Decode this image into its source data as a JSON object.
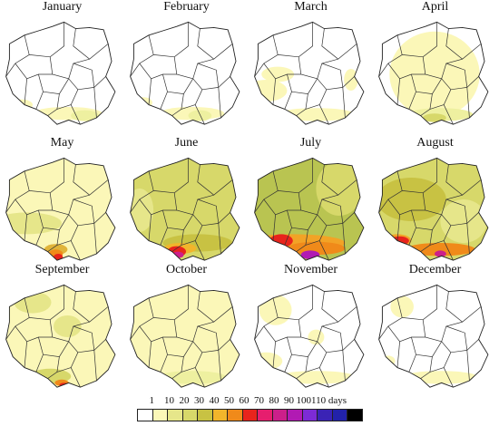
{
  "months": [
    {
      "name": "January",
      "base": "#ffffff",
      "mainCover": 0.0,
      "spots": [
        [
          "#fbf7b8",
          0.15,
          0.78,
          0.1,
          0.05
        ],
        [
          "#fbf7b8",
          0.55,
          0.86,
          0.3,
          0.06
        ],
        [
          "#eef0a0",
          0.7,
          0.88,
          0.12,
          0.05
        ]
      ]
    },
    {
      "name": "February",
      "base": "#ffffff",
      "mainCover": 0.0,
      "spots": [
        [
          "#fbf7b8",
          0.13,
          0.76,
          0.08,
          0.05
        ],
        [
          "#fbf7b8",
          0.55,
          0.86,
          0.28,
          0.06
        ],
        [
          "#eef0a0",
          0.62,
          0.88,
          0.1,
          0.05
        ]
      ]
    },
    {
      "name": "March",
      "base": "#ffffff",
      "mainCover": 0.0,
      "spots": [
        [
          "#fbf7b8",
          0.22,
          0.5,
          0.14,
          0.07
        ],
        [
          "#fbf7b8",
          0.12,
          0.65,
          0.18,
          0.1
        ],
        [
          "#fbf7b8",
          0.55,
          0.87,
          0.34,
          0.06
        ],
        [
          "#fbf7b8",
          0.85,
          0.55,
          0.06,
          0.1
        ]
      ]
    },
    {
      "name": "April",
      "base": "#ffffff",
      "mainCover": 0.62,
      "fill": "#fbf7b8",
      "spots": [
        [
          "#eef0a0",
          0.55,
          0.87,
          0.28,
          0.06
        ],
        [
          "#d7d86a",
          0.5,
          0.9,
          0.1,
          0.04
        ]
      ]
    },
    {
      "name": "May",
      "base": "#fbf7b8",
      "mainCover": 1.0,
      "spots": [
        [
          "#e6e68a",
          0.2,
          0.62,
          0.3,
          0.1
        ],
        [
          "#e0b43a",
          0.45,
          0.86,
          0.1,
          0.05
        ],
        [
          "#f08a1a",
          0.45,
          0.9,
          0.06,
          0.04
        ],
        [
          "#e8241c",
          0.47,
          0.93,
          0.04,
          0.03
        ]
      ]
    },
    {
      "name": "June",
      "base": "#d7d86a",
      "mainCover": 1.0,
      "spots": [
        [
          "#e6e68a",
          0.1,
          0.5,
          0.12,
          0.2
        ],
        [
          "#c8c243",
          0.6,
          0.8,
          0.3,
          0.08
        ],
        [
          "#f2b52b",
          0.45,
          0.85,
          0.14,
          0.05
        ],
        [
          "#e8241c",
          0.42,
          0.88,
          0.08,
          0.05
        ],
        [
          "#cc1f8a",
          0.43,
          0.91,
          0.05,
          0.03
        ]
      ]
    },
    {
      "name": "July",
      "base": "#b9c451",
      "mainCover": 1.0,
      "spots": [
        [
          "#d7d86a",
          0.75,
          0.3,
          0.2,
          0.25
        ],
        [
          "#f2a326",
          0.35,
          0.8,
          0.45,
          0.08
        ],
        [
          "#f08a1a",
          0.55,
          0.85,
          0.25,
          0.06
        ],
        [
          "#e8241c",
          0.25,
          0.78,
          0.1,
          0.06
        ],
        [
          "#b11ab3",
          0.5,
          0.91,
          0.08,
          0.04
        ]
      ]
    },
    {
      "name": "August",
      "base": "#d7d86a",
      "mainCover": 1.0,
      "spots": [
        [
          "#c8c243",
          0.3,
          0.4,
          0.3,
          0.2
        ],
        [
          "#e6e68a",
          0.75,
          0.6,
          0.2,
          0.2
        ],
        [
          "#f2a326",
          0.18,
          0.78,
          0.12,
          0.06
        ],
        [
          "#f08a1a",
          0.55,
          0.86,
          0.3,
          0.06
        ],
        [
          "#e8241c",
          0.2,
          0.78,
          0.08,
          0.04
        ],
        [
          "#cc1f8a",
          0.55,
          0.9,
          0.05,
          0.03
        ]
      ]
    },
    {
      "name": "September",
      "base": "#fbf7b8",
      "mainCover": 1.0,
      "spots": [
        [
          "#e6e68a",
          0.25,
          0.18,
          0.16,
          0.1
        ],
        [
          "#e6e68a",
          0.55,
          0.4,
          0.12,
          0.1
        ],
        [
          "#d7d86a",
          0.4,
          0.86,
          0.18,
          0.07
        ],
        [
          "#f08a1a",
          0.5,
          0.92,
          0.06,
          0.03
        ],
        [
          "#e8241c",
          0.52,
          0.94,
          0.04,
          0.02
        ]
      ]
    },
    {
      "name": "October",
      "base": "#fbf7b8",
      "mainCover": 1.0,
      "spots": [
        [
          "#eef0a0",
          0.55,
          0.87,
          0.3,
          0.06
        ]
      ]
    },
    {
      "name": "November",
      "base": "#ffffff",
      "mainCover": 0.0,
      "spots": [
        [
          "#fbf7b8",
          0.2,
          0.25,
          0.14,
          0.14
        ],
        [
          "#fbf7b8",
          0.12,
          0.72,
          0.14,
          0.08
        ],
        [
          "#fbf7b8",
          0.55,
          0.87,
          0.35,
          0.06
        ],
        [
          "#fbf7b8",
          0.55,
          0.5,
          0.07,
          0.07
        ]
      ]
    },
    {
      "name": "December",
      "base": "#ffffff",
      "mainCover": 0.0,
      "spots": [
        [
          "#fbf7b8",
          0.22,
          0.22,
          0.1,
          0.1
        ],
        [
          "#fbf7b8",
          0.1,
          0.72,
          0.06,
          0.05
        ],
        [
          "#fbf7b8",
          0.55,
          0.87,
          0.33,
          0.06
        ]
      ]
    }
  ],
  "legend": {
    "labels": [
      "1",
      "10",
      "20",
      "30",
      "40",
      "50",
      "60",
      "70",
      "80",
      "90",
      "100",
      "110 days"
    ],
    "colors": [
      "#ffffff",
      "#fbf7b8",
      "#e6e68a",
      "#d7d86a",
      "#c8c243",
      "#f2b52b",
      "#f08a1a",
      "#e8241c",
      "#e61e6e",
      "#cc1f8a",
      "#b11ab3",
      "#7d2bd6",
      "#3a23b5",
      "#2222aa",
      "#000000"
    ]
  }
}
